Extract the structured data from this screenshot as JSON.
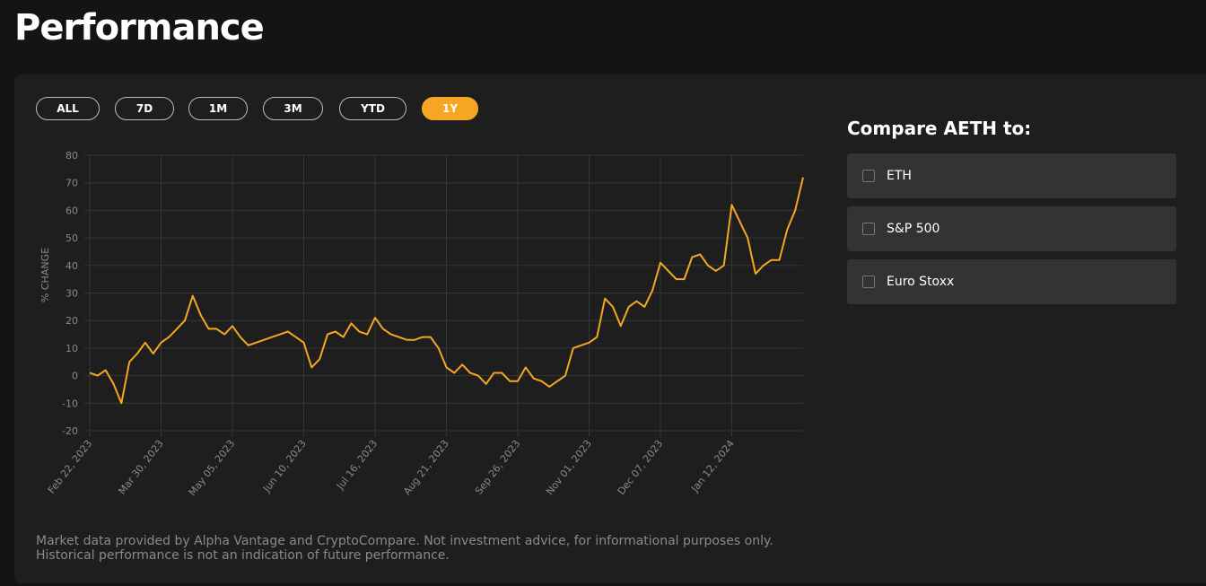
{
  "header": {
    "title": "Performance"
  },
  "range_buttons": [
    "ALL",
    "7D",
    "1M",
    "3M",
    "YTD",
    "1Y"
  ],
  "selected_range": "1Y",
  "compare": {
    "title": "Compare AETH to:",
    "options": [
      "ETH",
      "S&P 500",
      "Euro Stoxx"
    ]
  },
  "footer": "Market data provided by Alpha Vantage and CryptoCompare. Not investment advice, for informational purposes only. Historical performance is not an indication of future performance.",
  "chart_data": {
    "type": "line",
    "y_label": "% CHANGE",
    "color": "#f5a623",
    "grid": true,
    "ylim": [
      -20,
      80
    ],
    "yticks": [
      -20,
      -10,
      0,
      10,
      20,
      30,
      40,
      50,
      60,
      70,
      80
    ],
    "xlim": [
      "2023-02-22",
      "2024-02-17"
    ],
    "xticks": [
      {
        "value": "2023-02-22",
        "label": "Feb 22, 2023"
      },
      {
        "value": "2023-03-30",
        "label": "Mar 30, 2023"
      },
      {
        "value": "2023-05-05",
        "label": "May 05, 2023"
      },
      {
        "value": "2023-06-10",
        "label": "Jun 10, 2023"
      },
      {
        "value": "2023-07-16",
        "label": "Jul 16, 2023"
      },
      {
        "value": "2023-08-21",
        "label": "Aug 21, 2023"
      },
      {
        "value": "2023-09-26",
        "label": "Sep 26, 2023"
      },
      {
        "value": "2023-11-01",
        "label": "Nov 01, 2023"
      },
      {
        "value": "2023-12-07",
        "label": "Dec 07, 2023"
      },
      {
        "value": "2024-01-12",
        "label": "Jan 12, 2024"
      }
    ],
    "x": [
      "2023-02-22",
      "2023-02-26",
      "2023-03-02",
      "2023-03-06",
      "2023-03-10",
      "2023-03-14",
      "2023-03-18",
      "2023-03-22",
      "2023-03-26",
      "2023-03-30",
      "2023-04-03",
      "2023-04-07",
      "2023-04-11",
      "2023-04-15",
      "2023-04-19",
      "2023-04-23",
      "2023-04-27",
      "2023-05-01",
      "2023-05-05",
      "2023-05-09",
      "2023-05-13",
      "2023-05-17",
      "2023-05-21",
      "2023-05-25",
      "2023-05-29",
      "2023-06-02",
      "2023-06-06",
      "2023-06-10",
      "2023-06-14",
      "2023-06-18",
      "2023-06-22",
      "2023-06-26",
      "2023-06-30",
      "2023-07-04",
      "2023-07-08",
      "2023-07-12",
      "2023-07-16",
      "2023-07-20",
      "2023-07-24",
      "2023-07-28",
      "2023-08-01",
      "2023-08-05",
      "2023-08-09",
      "2023-08-13",
      "2023-08-17",
      "2023-08-21",
      "2023-08-25",
      "2023-08-29",
      "2023-09-02",
      "2023-09-06",
      "2023-09-10",
      "2023-09-14",
      "2023-09-18",
      "2023-09-22",
      "2023-09-26",
      "2023-09-30",
      "2023-10-04",
      "2023-10-08",
      "2023-10-12",
      "2023-10-16",
      "2023-10-20",
      "2023-10-24",
      "2023-10-28",
      "2023-11-01",
      "2023-11-05",
      "2023-11-09",
      "2023-11-13",
      "2023-11-17",
      "2023-11-21",
      "2023-11-25",
      "2023-11-29",
      "2023-12-03",
      "2023-12-07",
      "2023-12-11",
      "2023-12-15",
      "2023-12-19",
      "2023-12-23",
      "2023-12-27",
      "2023-12-31",
      "2024-01-04",
      "2024-01-08",
      "2024-01-12",
      "2024-01-16",
      "2024-01-20",
      "2024-01-24",
      "2024-01-28",
      "2024-02-01",
      "2024-02-05",
      "2024-02-09",
      "2024-02-13",
      "2024-02-17"
    ],
    "values": [
      1,
      0,
      2,
      -3,
      -10,
      5,
      8,
      12,
      8,
      12,
      14,
      17,
      20,
      29,
      22,
      17,
      17,
      15,
      18,
      14,
      11,
      12,
      13,
      14,
      15,
      16,
      14,
      12,
      3,
      6,
      15,
      16,
      14,
      19,
      16,
      15,
      21,
      17,
      15,
      14,
      13,
      13,
      14,
      14,
      10,
      3,
      1,
      4,
      1,
      0,
      -3,
      1,
      1,
      -2,
      -2,
      3,
      -1,
      -2,
      -4,
      -2,
      0,
      10,
      11,
      12,
      14,
      28,
      25,
      18,
      25,
      27,
      25,
      31,
      41,
      38,
      35,
      35,
      43,
      44,
      40,
      38,
      40,
      62,
      56,
      50,
      37,
      40,
      42,
      42,
      53,
      60,
      72
    ]
  }
}
